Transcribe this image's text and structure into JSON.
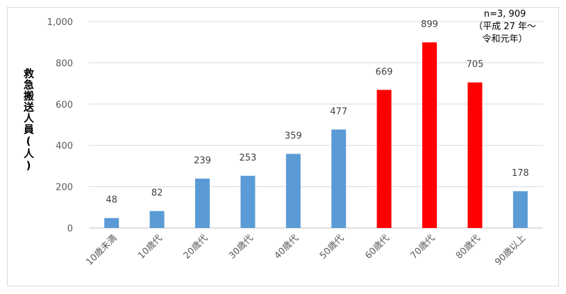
{
  "chart_data": {
    "type": "bar",
    "categories": [
      "10歳未満",
      "10歳代",
      "20歳代",
      "30歳代",
      "40歳代",
      "50歳代",
      "60歳代",
      "70歳代",
      "80歳代",
      "90歳以上"
    ],
    "values": [
      48,
      82,
      239,
      253,
      359,
      477,
      669,
      899,
      705,
      178
    ],
    "value_labels": [
      "48",
      "82",
      "239",
      "253",
      "359",
      "477",
      "669",
      "899",
      "705",
      "178"
    ],
    "highlight": [
      false,
      false,
      false,
      false,
      false,
      false,
      true,
      true,
      true,
      false
    ],
    "colors": {
      "default": "#5b9bd5",
      "highlight": "#ff0000"
    },
    "ylabel": "救急搬送人員(人)",
    "ylim": [
      0,
      1000
    ],
    "yticks": [
      0,
      200,
      400,
      600,
      800,
      1000
    ],
    "ytick_labels": [
      "0",
      "200",
      "400",
      "600",
      "800",
      "1,000"
    ],
    "grid": true,
    "annotation": [
      "n=3, 909",
      "（平成 27 年～",
      "令和元年）"
    ]
  }
}
